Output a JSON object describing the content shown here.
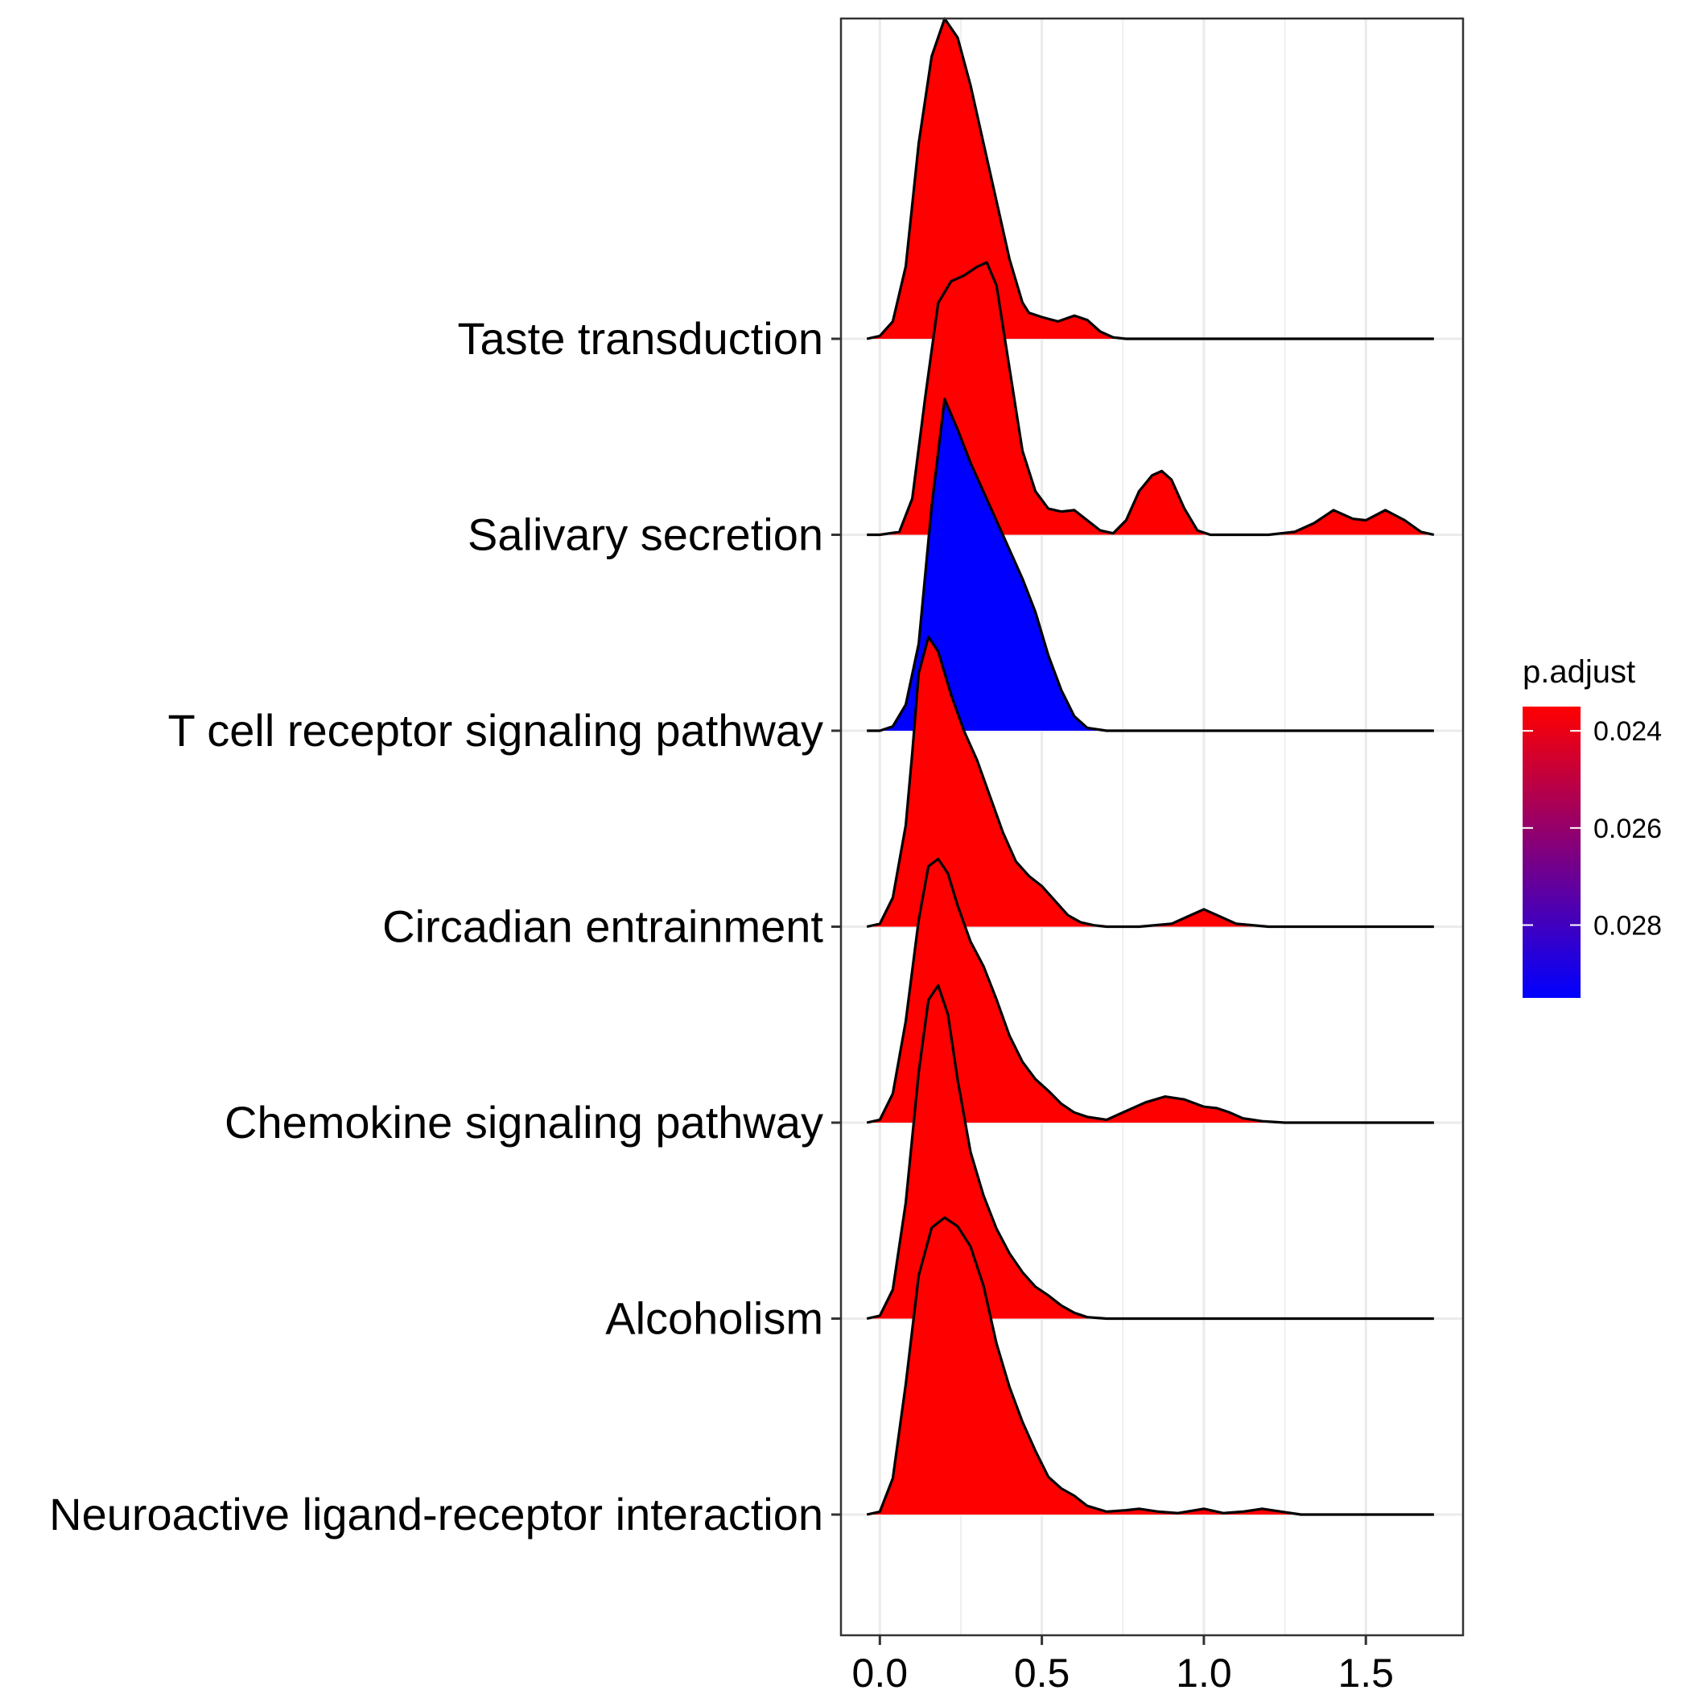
{
  "chart_data": {
    "type": "ridgeline",
    "title": "",
    "xlabel": "",
    "ylabel": "",
    "xlim": [
      -0.12,
      1.8
    ],
    "x_ticks": [
      0.0,
      0.5,
      1.0,
      1.5
    ],
    "x_tick_labels": [
      "0.0",
      "0.5",
      "1.0",
      "1.5"
    ],
    "grid": true,
    "legend_position": "right",
    "colors": {
      "high": "#ff0000",
      "low": "#0000ff",
      "outline": "#000000",
      "grid": "#ebebeb"
    },
    "color_scale": {
      "title": "p.adjust",
      "ticks": [
        0.024,
        0.026,
        0.028
      ],
      "tick_labels": [
        "0.024",
        "0.026",
        "0.028"
      ],
      "range": [
        0.0235,
        0.0295
      ]
    },
    "series": [
      {
        "category": "Taste transduction",
        "p_adjust": 0.0235,
        "fill": "#ff0000",
        "x": [
          -0.04,
          0.0,
          0.04,
          0.08,
          0.12,
          0.16,
          0.2,
          0.24,
          0.28,
          0.32,
          0.36,
          0.4,
          0.44,
          0.46,
          0.5,
          0.55,
          0.6,
          0.64,
          0.68,
          0.72,
          0.76,
          0.8,
          1.0,
          1.2,
          1.4,
          1.6,
          1.71
        ],
        "y": [
          0.0,
          0.02,
          0.12,
          0.5,
          1.35,
          1.95,
          2.21,
          2.08,
          1.75,
          1.35,
          0.95,
          0.55,
          0.25,
          0.18,
          0.15,
          0.12,
          0.16,
          0.13,
          0.05,
          0.01,
          0.0,
          0.0,
          0.0,
          0.0,
          0.0,
          0.0,
          0.0
        ]
      },
      {
        "category": "Salivary secretion",
        "p_adjust": 0.0235,
        "fill": "#ff0000",
        "x": [
          -0.04,
          0.0,
          0.06,
          0.1,
          0.14,
          0.18,
          0.22,
          0.26,
          0.3,
          0.33,
          0.36,
          0.4,
          0.44,
          0.48,
          0.52,
          0.56,
          0.6,
          0.64,
          0.68,
          0.72,
          0.76,
          0.8,
          0.84,
          0.87,
          0.9,
          0.94,
          0.98,
          1.02,
          1.1,
          1.2,
          1.28,
          1.34,
          1.4,
          1.46,
          1.5,
          1.56,
          1.62,
          1.67,
          1.71
        ],
        "y": [
          0.0,
          0.0,
          0.02,
          0.25,
          0.95,
          1.6,
          1.75,
          1.79,
          1.85,
          1.88,
          1.72,
          1.15,
          0.58,
          0.3,
          0.18,
          0.16,
          0.17,
          0.1,
          0.03,
          0.01,
          0.1,
          0.3,
          0.41,
          0.44,
          0.38,
          0.18,
          0.03,
          0.0,
          0.0,
          0.0,
          0.02,
          0.08,
          0.17,
          0.11,
          0.1,
          0.17,
          0.1,
          0.02,
          0.0
        ]
      },
      {
        "category": "T cell receptor signaling pathway",
        "p_adjust": 0.0295,
        "fill": "#0000ff",
        "x": [
          -0.04,
          0.0,
          0.04,
          0.08,
          0.12,
          0.16,
          0.2,
          0.24,
          0.28,
          0.32,
          0.36,
          0.4,
          0.44,
          0.48,
          0.52,
          0.56,
          0.6,
          0.64,
          0.7,
          0.8,
          1.0,
          1.2,
          1.4,
          1.6,
          1.71
        ],
        "y": [
          0.0,
          0.0,
          0.03,
          0.18,
          0.6,
          1.55,
          2.29,
          2.08,
          1.85,
          1.65,
          1.45,
          1.25,
          1.05,
          0.82,
          0.52,
          0.28,
          0.1,
          0.02,
          0.0,
          0.0,
          0.0,
          0.0,
          0.0,
          0.0,
          0.0
        ]
      },
      {
        "category": "Circadian entrainment",
        "p_adjust": 0.0235,
        "fill": "#ff0000",
        "x": [
          -0.04,
          0.0,
          0.04,
          0.08,
          0.1,
          0.12,
          0.15,
          0.18,
          0.22,
          0.26,
          0.3,
          0.34,
          0.38,
          0.42,
          0.46,
          0.5,
          0.54,
          0.58,
          0.62,
          0.66,
          0.7,
          0.8,
          0.9,
          0.96,
          1.0,
          1.04,
          1.1,
          1.2,
          1.4,
          1.71
        ],
        "y": [
          0.0,
          0.02,
          0.2,
          0.7,
          1.2,
          1.75,
          2.0,
          1.9,
          1.6,
          1.35,
          1.15,
          0.9,
          0.65,
          0.45,
          0.35,
          0.28,
          0.18,
          0.08,
          0.03,
          0.01,
          0.0,
          0.0,
          0.02,
          0.08,
          0.12,
          0.08,
          0.02,
          0.0,
          0.0,
          0.0
        ]
      },
      {
        "category": "Chemokine signaling pathway",
        "p_adjust": 0.0235,
        "fill": "#ff0000",
        "x": [
          -0.04,
          0.0,
          0.04,
          0.08,
          0.12,
          0.15,
          0.18,
          0.21,
          0.24,
          0.28,
          0.32,
          0.36,
          0.4,
          0.44,
          0.48,
          0.52,
          0.56,
          0.6,
          0.64,
          0.7,
          0.76,
          0.82,
          0.88,
          0.94,
          1.0,
          1.04,
          1.08,
          1.12,
          1.18,
          1.25,
          1.4,
          1.71
        ],
        "y": [
          0.0,
          0.02,
          0.2,
          0.7,
          1.4,
          1.77,
          1.82,
          1.72,
          1.5,
          1.25,
          1.08,
          0.85,
          0.6,
          0.42,
          0.3,
          0.22,
          0.13,
          0.07,
          0.04,
          0.02,
          0.08,
          0.14,
          0.18,
          0.16,
          0.11,
          0.1,
          0.07,
          0.03,
          0.01,
          0.0,
          0.0,
          0.0
        ]
      },
      {
        "category": "Alcoholism",
        "p_adjust": 0.0235,
        "fill": "#ff0000",
        "x": [
          -0.04,
          0.0,
          0.04,
          0.08,
          0.12,
          0.15,
          0.18,
          0.21,
          0.24,
          0.28,
          0.32,
          0.36,
          0.4,
          0.44,
          0.48,
          0.52,
          0.56,
          0.6,
          0.64,
          0.7,
          0.8,
          0.9,
          1.0,
          1.2,
          1.4,
          1.6,
          1.71
        ],
        "y": [
          0.0,
          0.02,
          0.2,
          0.8,
          1.7,
          2.2,
          2.3,
          2.1,
          1.65,
          1.15,
          0.85,
          0.62,
          0.45,
          0.32,
          0.22,
          0.16,
          0.09,
          0.04,
          0.01,
          0.0,
          0.0,
          0.0,
          0.0,
          0.0,
          0.0,
          0.0,
          0.0
        ]
      },
      {
        "category": "Neuroactive ligand-receptor interaction",
        "p_adjust": 0.0235,
        "fill": "#ff0000",
        "x": [
          -0.04,
          0.0,
          0.04,
          0.08,
          0.12,
          0.16,
          0.2,
          0.24,
          0.28,
          0.32,
          0.36,
          0.4,
          0.44,
          0.48,
          0.52,
          0.56,
          0.6,
          0.64,
          0.7,
          0.76,
          0.8,
          0.86,
          0.92,
          1.0,
          1.06,
          1.12,
          1.18,
          1.24,
          1.3,
          1.4,
          1.6,
          1.71
        ],
        "y": [
          0.0,
          0.02,
          0.25,
          0.9,
          1.65,
          1.98,
          2.05,
          1.99,
          1.85,
          1.58,
          1.18,
          0.88,
          0.64,
          0.44,
          0.26,
          0.18,
          0.13,
          0.06,
          0.02,
          0.03,
          0.04,
          0.02,
          0.01,
          0.04,
          0.01,
          0.02,
          0.04,
          0.02,
          0.0,
          0.0,
          0.0,
          0.0
        ]
      }
    ]
  }
}
